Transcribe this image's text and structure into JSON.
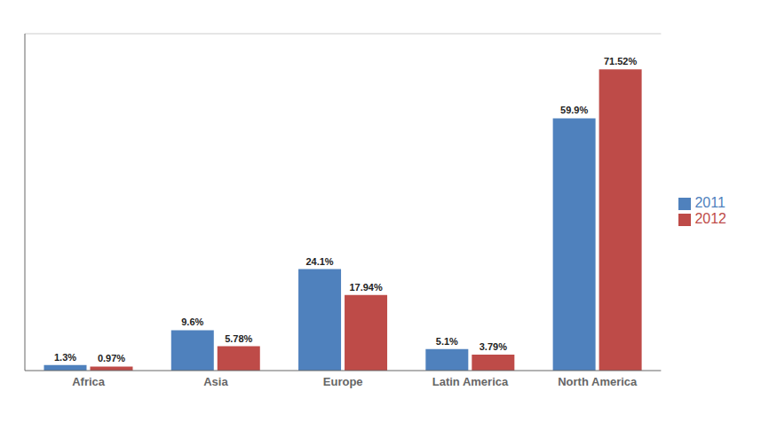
{
  "chart_data": {
    "type": "bar",
    "categories": [
      "Africa",
      "Asia",
      "Europe",
      "Latin America",
      "North America"
    ],
    "series": [
      {
        "name": "2011",
        "color": "#4F81BD",
        "values": [
          1.3,
          9.6,
          24.1,
          5.1,
          59.9
        ],
        "value_labels": [
          "1.3%",
          "9.6%",
          "24.1%",
          "5.1%",
          "59.9%"
        ]
      },
      {
        "name": "2012",
        "color": "#BE4B48",
        "values": [
          0.97,
          5.78,
          17.94,
          3.79,
          71.52
        ],
        "value_labels": [
          "0.97%",
          "5.78%",
          "17.94%",
          "3.79%",
          "71.52%"
        ]
      }
    ],
    "ylim": [
      0,
      80
    ],
    "yticks": [],
    "grid": false,
    "data_labels": true,
    "tick_labels": "x",
    "legend": "right"
  }
}
